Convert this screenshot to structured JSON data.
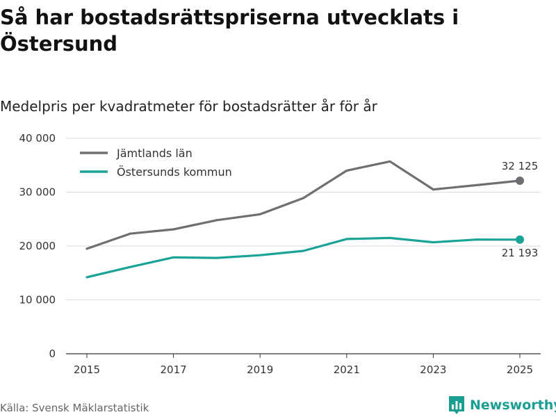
{
  "title": "Så har bostadsrättspriserna utvecklats i Östersund",
  "subtitle": "Medelpris per kvadratmeter för bostadsrätter år för år",
  "source": "Källa: Svensk Mäklarstatistik",
  "brand": "Newsworthy",
  "colors": {
    "jamtland": "#6e6e73",
    "ostersund": "#1aa396",
    "grid": "#dddddd",
    "brand": "#1a9e92"
  },
  "chart_data": {
    "type": "line",
    "title": "Så har bostadsrättspriserna utvecklats i Östersund",
    "subtitle": "Medelpris per kvadratmeter för bostadsrätter år för år",
    "xlabel": "",
    "ylabel": "",
    "x": [
      2015,
      2016,
      2017,
      2018,
      2019,
      2020,
      2021,
      2022,
      2023,
      2024,
      2025
    ],
    "xticks": [
      "2015",
      "2017",
      "2019",
      "2021",
      "2023",
      "2025"
    ],
    "ylim": [
      0,
      40000
    ],
    "yticks": [
      {
        "value": 0,
        "label": "0"
      },
      {
        "value": 10000,
        "label": "10 000"
      },
      {
        "value": 20000,
        "label": "20 000"
      },
      {
        "value": 30000,
        "label": "30 000"
      },
      {
        "value": 40000,
        "label": "40 000"
      }
    ],
    "grid": true,
    "legend_position": "top-left",
    "series": [
      {
        "name": "Jämtlands län",
        "color_key": "jamtland",
        "values": [
          19500,
          22300,
          23100,
          24800,
          25900,
          28900,
          34000,
          35700,
          30500,
          31300,
          32125
        ],
        "end_label": "32 125"
      },
      {
        "name": "Östersunds kommun",
        "color_key": "ostersund",
        "values": [
          14200,
          16100,
          17900,
          17800,
          18300,
          19100,
          21300,
          21500,
          20700,
          21200,
          21193
        ],
        "end_label": "21 193"
      }
    ]
  }
}
